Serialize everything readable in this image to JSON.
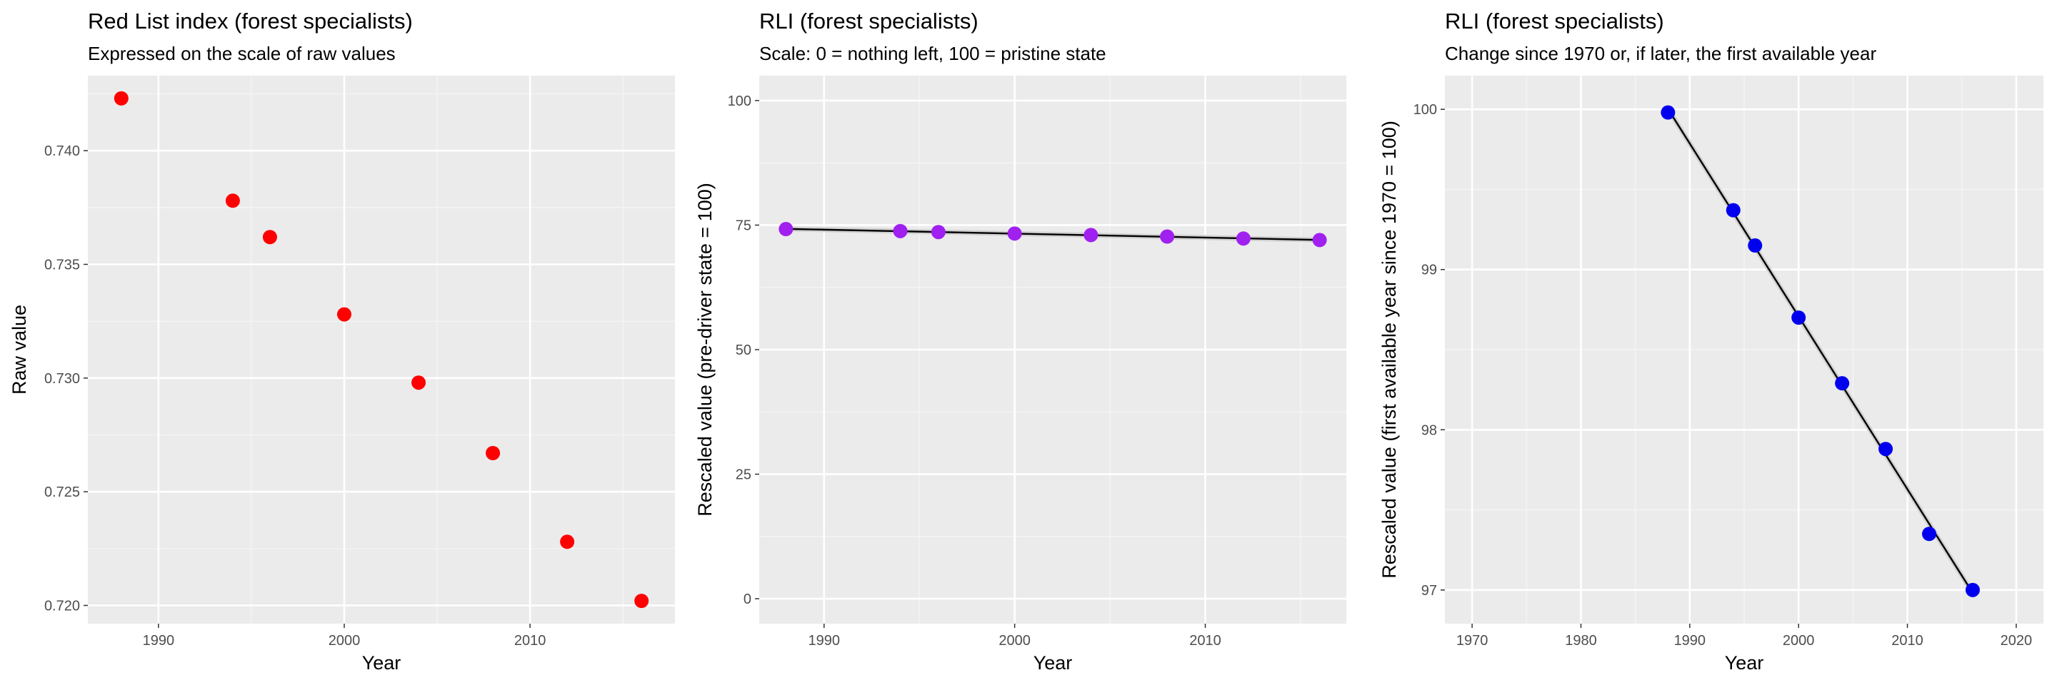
{
  "chart_data": [
    {
      "type": "scatter",
      "title": "Red List index (forest specialists)",
      "subtitle": "Expressed on the scale of raw values",
      "xlabel": "Year",
      "ylabel": "Raw value",
      "xlim": [
        1986.2,
        2017.8
      ],
      "ylim": [
        0.7192,
        0.7433
      ],
      "x_ticks": [
        1990,
        2000,
        2010
      ],
      "x_tick_labels": [
        "1990",
        "2000",
        "2010"
      ],
      "y_ticks": [
        0.72,
        0.725,
        0.73,
        0.735,
        0.74
      ],
      "y_tick_labels": [
        "0.720",
        "0.725",
        "0.730",
        "0.735",
        "0.740"
      ],
      "grid": true,
      "point_color": "#ff0000",
      "trend_line": false,
      "series": [
        {
          "x": [
            1988,
            1994,
            1996,
            2000,
            2004,
            2008,
            2012,
            2016
          ],
          "y": [
            0.7423,
            0.7378,
            0.7362,
            0.7328,
            0.7298,
            0.7267,
            0.7228,
            0.7202
          ]
        }
      ]
    },
    {
      "type": "scatter",
      "title": "RLI (forest specialists)",
      "subtitle": "Scale: 0 = nothing left, 100 = pristine state",
      "xlabel": "Year",
      "ylabel": "Rescaled value (pre-driver state = 100)",
      "xlim": [
        1986.6,
        2017.4
      ],
      "ylim": [
        -5,
        105
      ],
      "x_ticks": [
        1990,
        2000,
        2010
      ],
      "x_tick_labels": [
        "1990",
        "2000",
        "2010"
      ],
      "y_ticks": [
        0,
        25,
        50,
        75,
        100
      ],
      "y_tick_labels": [
        "0",
        "25",
        "50",
        "75",
        "100"
      ],
      "grid": true,
      "point_color": "#a020f0",
      "trend_line": true,
      "line_color": "#000000",
      "series": [
        {
          "x": [
            1988,
            1994,
            1996,
            2000,
            2004,
            2008,
            2012,
            2016
          ],
          "y": [
            74.2,
            73.8,
            73.6,
            73.3,
            73.0,
            72.7,
            72.3,
            72.0
          ]
        }
      ]
    },
    {
      "type": "scatter",
      "title": "RLI (forest specialists)",
      "subtitle": "Change since 1970 or, if later, the first available year",
      "xlabel": "Year",
      "ylabel": "Rescaled value (first available year since 1970 = 100)",
      "xlim": [
        1967.5,
        2022.5
      ],
      "ylim": [
        96.79,
        100.21
      ],
      "x_ticks": [
        1970,
        1980,
        1990,
        2000,
        2010,
        2020
      ],
      "x_tick_labels": [
        "1970",
        "1980",
        "1990",
        "2000",
        "2010",
        "2020"
      ],
      "y_ticks": [
        97,
        98,
        99,
        100
      ],
      "y_tick_labels": [
        "97",
        "98",
        "99",
        "100"
      ],
      "grid": true,
      "point_color": "#0000ee",
      "trend_line": true,
      "line_color": "#000000",
      "series": [
        {
          "x": [
            1988,
            1994,
            1996,
            2000,
            2004,
            2008,
            2012,
            2016
          ],
          "y": [
            99.98,
            99.37,
            99.15,
            98.7,
            98.29,
            97.88,
            97.35,
            97.0
          ]
        }
      ]
    }
  ]
}
